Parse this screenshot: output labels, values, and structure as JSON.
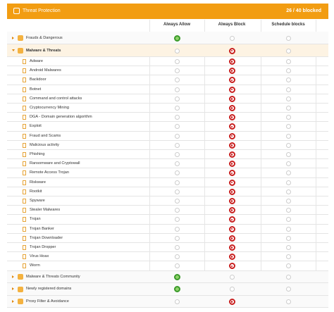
{
  "header": {
    "title": "Threat Protection",
    "counter": "26 / 40 blocked"
  },
  "columns": [
    "Always Allow",
    "Always Block",
    "Schedule blocks"
  ],
  "rows": [
    {
      "label": "Frauds & Dangerous",
      "kind": "group",
      "state": "allow"
    },
    {
      "label": "Malware & Threats",
      "kind": "group",
      "state": "block",
      "expanded": true
    },
    {
      "label": "Adware",
      "kind": "item",
      "state": "block"
    },
    {
      "label": "Android Malwares",
      "kind": "item",
      "state": "block"
    },
    {
      "label": "Backdoor",
      "kind": "item",
      "state": "block"
    },
    {
      "label": "Botnet",
      "kind": "item",
      "state": "block"
    },
    {
      "label": "Command and control attacks",
      "kind": "item",
      "state": "block"
    },
    {
      "label": "Cryptocurrency Mining",
      "kind": "item",
      "state": "block"
    },
    {
      "label": "DGA - Domain generation algorithm",
      "kind": "item",
      "state": "block"
    },
    {
      "label": "Exploit",
      "kind": "item",
      "state": "block"
    },
    {
      "label": "Fraud and Scams",
      "kind": "item",
      "state": "block"
    },
    {
      "label": "Malicious activity",
      "kind": "item",
      "state": "block"
    },
    {
      "label": "Phishing",
      "kind": "item",
      "state": "block"
    },
    {
      "label": "Ransomware and Cryptowall",
      "kind": "item",
      "state": "block"
    },
    {
      "label": "Remote Access Trojan",
      "kind": "item",
      "state": "block"
    },
    {
      "label": "Riskware",
      "kind": "item",
      "state": "block"
    },
    {
      "label": "Rootkit",
      "kind": "item",
      "state": "block"
    },
    {
      "label": "Spyware",
      "kind": "item",
      "state": "block"
    },
    {
      "label": "Stealer Malwares",
      "kind": "item",
      "state": "block"
    },
    {
      "label": "Trojan",
      "kind": "item",
      "state": "block"
    },
    {
      "label": "Trojan Banker",
      "kind": "item",
      "state": "block"
    },
    {
      "label": "Trojan Downloader",
      "kind": "item",
      "state": "block"
    },
    {
      "label": "Trojan Dropper",
      "kind": "item",
      "state": "block"
    },
    {
      "label": "Virus Hoax",
      "kind": "item",
      "state": "block"
    },
    {
      "label": "Worm",
      "kind": "item",
      "state": "block"
    },
    {
      "label": "Malware & Threats Community",
      "kind": "group",
      "state": "allow"
    },
    {
      "label": "Newly registered domains",
      "kind": "group",
      "state": "allow"
    },
    {
      "label": "Proxy Filter & Avoidance",
      "kind": "group",
      "state": "block"
    }
  ]
}
